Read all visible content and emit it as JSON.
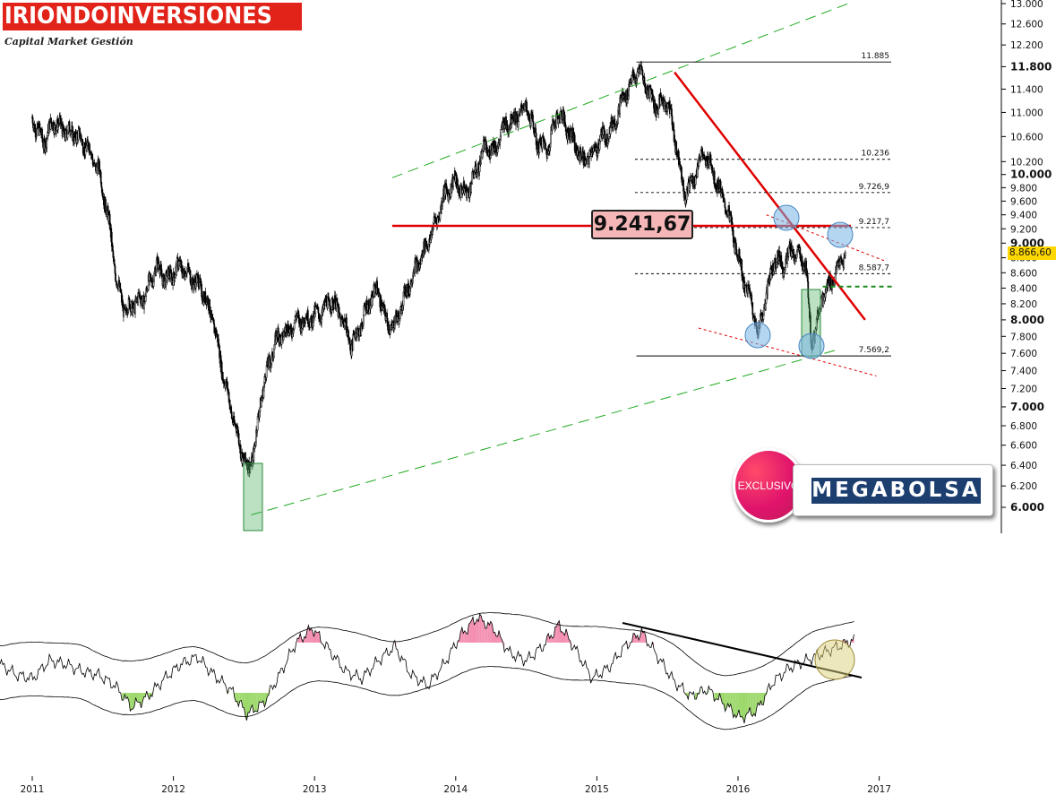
{
  "brand": {
    "name": "IRIONDOINVERSIONES",
    "tagline": "Capital Market Gestión",
    "badge_exclusive": "EXCLUSIVO",
    "badge_megabolsa": "MEGABOLSA",
    "brand_color": "#e2231a",
    "megabolsa_color": "#1c3f70"
  },
  "price_callout": "9.241,67",
  "last_price": "8.866,60",
  "chart_data": {
    "type": "candlestick",
    "title": "",
    "x_ticks": [
      "2011",
      "2012",
      "2013",
      "2014",
      "2015",
      "2016",
      "2017"
    ],
    "y_ticks": [
      {
        "label": "13.000",
        "value": 13000,
        "bold": false
      },
      {
        "label": "12.600",
        "value": 12600,
        "bold": false
      },
      {
        "label": "12.200",
        "value": 12200,
        "bold": false
      },
      {
        "label": "11.800",
        "value": 11800,
        "bold": true
      },
      {
        "label": "11.400",
        "value": 11400,
        "bold": false
      },
      {
        "label": "11.000",
        "value": 11000,
        "bold": false
      },
      {
        "label": "10.600",
        "value": 10600,
        "bold": false
      },
      {
        "label": "10.200",
        "value": 10200,
        "bold": false
      },
      {
        "label": "10.000",
        "value": 10000,
        "bold": true
      },
      {
        "label": "9.800",
        "value": 9800,
        "bold": false
      },
      {
        "label": "9.600",
        "value": 9600,
        "bold": false
      },
      {
        "label": "9.400",
        "value": 9400,
        "bold": false
      },
      {
        "label": "9.200",
        "value": 9200,
        "bold": false
      },
      {
        "label": "9.000",
        "value": 9000,
        "bold": true
      },
      {
        "label": "8.800",
        "value": 8800,
        "bold": false
      },
      {
        "label": "8.600",
        "value": 8600,
        "bold": false
      },
      {
        "label": "8.400",
        "value": 8400,
        "bold": false
      },
      {
        "label": "8.200",
        "value": 8200,
        "bold": false
      },
      {
        "label": "8.000",
        "value": 8000,
        "bold": true
      },
      {
        "label": "7.800",
        "value": 7800,
        "bold": false
      },
      {
        "label": "7.600",
        "value": 7600,
        "bold": false
      },
      {
        "label": "7.400",
        "value": 7400,
        "bold": false
      },
      {
        "label": "7.200",
        "value": 7200,
        "bold": false
      },
      {
        "label": "7.000",
        "value": 7000,
        "bold": true
      },
      {
        "label": "6.800",
        "value": 6800,
        "bold": false
      },
      {
        "label": "6.600",
        "value": 6600,
        "bold": false
      },
      {
        "label": "6.400",
        "value": 6400,
        "bold": false
      },
      {
        "label": "6.200",
        "value": 6200,
        "bold": false
      },
      {
        "label": "6.000",
        "value": 6000,
        "bold": true
      }
    ],
    "y_scale": "log",
    "fib_levels": [
      {
        "label": "11.885",
        "value": 11885
      },
      {
        "label": "10.236",
        "value": 10236
      },
      {
        "label": "9.726,9",
        "value": 9726.9
      },
      {
        "label": "9.217,7",
        "value": 9217.7
      },
      {
        "label": "8.587,7",
        "value": 8587.7
      },
      {
        "label": "7.569,2",
        "value": 7569.2
      }
    ],
    "price_series_close": [
      [
        2011.0,
        10900
      ],
      [
        2011.08,
        10500
      ],
      [
        2011.15,
        10850
      ],
      [
        2011.22,
        10700
      ],
      [
        2011.3,
        10650
      ],
      [
        2011.4,
        10400
      ],
      [
        2011.48,
        10000
      ],
      [
        2011.55,
        9200
      ],
      [
        2011.6,
        8450
      ],
      [
        2011.66,
        8100
      ],
      [
        2011.72,
        8200
      ],
      [
        2011.8,
        8300
      ],
      [
        2011.88,
        8700
      ],
      [
        2011.95,
        8500
      ],
      [
        2012.05,
        8700
      ],
      [
        2012.12,
        8550
      ],
      [
        2012.2,
        8400
      ],
      [
        2012.28,
        8000
      ],
      [
        2012.36,
        7300
      ],
      [
        2012.42,
        6900
      ],
      [
        2012.48,
        6550
      ],
      [
        2012.53,
        6350
      ],
      [
        2012.58,
        6600
      ],
      [
        2012.62,
        7100
      ],
      [
        2012.68,
        7500
      ],
      [
        2012.74,
        7800
      ],
      [
        2012.8,
        7850
      ],
      [
        2012.88,
        8000
      ],
      [
        2012.95,
        8000
      ],
      [
        2013.05,
        8100
      ],
      [
        2013.12,
        8250
      ],
      [
        2013.2,
        8000
      ],
      [
        2013.26,
        7700
      ],
      [
        2013.32,
        7900
      ],
      [
        2013.38,
        8200
      ],
      [
        2013.45,
        8400
      ],
      [
        2013.5,
        8000
      ],
      [
        2013.56,
        7900
      ],
      [
        2013.62,
        8200
      ],
      [
        2013.7,
        8600
      ],
      [
        2013.78,
        8900
      ],
      [
        2013.86,
        9300
      ],
      [
        2013.92,
        9700
      ],
      [
        2014.0,
        9900
      ],
      [
        2014.06,
        9700
      ],
      [
        2014.12,
        9900
      ],
      [
        2014.2,
        10400
      ],
      [
        2014.28,
        10400
      ],
      [
        2014.35,
        10800
      ],
      [
        2014.42,
        10900
      ],
      [
        2014.5,
        11100
      ],
      [
        2014.58,
        10500
      ],
      [
        2014.65,
        10400
      ],
      [
        2014.72,
        11000
      ],
      [
        2014.78,
        10800
      ],
      [
        2014.84,
        10500
      ],
      [
        2014.9,
        10200
      ],
      [
        2014.96,
        10300
      ],
      [
        2015.04,
        10600
      ],
      [
        2015.1,
        10700
      ],
      [
        2015.18,
        11200
      ],
      [
        2015.24,
        11500
      ],
      [
        2015.3,
        11750
      ],
      [
        2015.36,
        11400
      ],
      [
        2015.42,
        11100
      ],
      [
        2015.5,
        11200
      ],
      [
        2015.56,
        10500
      ],
      [
        2015.62,
        9700
      ],
      [
        2015.68,
        9900
      ],
      [
        2015.74,
        10300
      ],
      [
        2015.8,
        10200
      ],
      [
        2015.86,
        9800
      ],
      [
        2015.92,
        9500
      ],
      [
        2015.98,
        9000
      ],
      [
        2016.04,
        8500
      ],
      [
        2016.1,
        8200
      ],
      [
        2016.14,
        7820
      ],
      [
        2016.2,
        8300
      ],
      [
        2016.26,
        8800
      ],
      [
        2016.32,
        8700
      ],
      [
        2016.38,
        8900
      ],
      [
        2016.44,
        8800
      ],
      [
        2016.48,
        8700
      ],
      [
        2016.52,
        7700
      ],
      [
        2016.56,
        8000
      ],
      [
        2016.6,
        8300
      ],
      [
        2016.64,
        8400
      ],
      [
        2016.68,
        8550
      ],
      [
        2016.72,
        8700
      ],
      [
        2016.76,
        8866.6
      ]
    ],
    "trendlines": [
      {
        "kind": "upper-channel",
        "color": "#22aa22",
        "dash": true,
        "from": [
          2013.55,
          9950
        ],
        "to": [
          2016.78,
          13000
        ]
      },
      {
        "kind": "lower-channel",
        "color": "#22aa22",
        "dash": true,
        "from": [
          2012.55,
          5930
        ],
        "to": [
          2016.72,
          7650
        ]
      },
      {
        "kind": "resistance",
        "color": "#e00000",
        "dash": false,
        "from": [
          2013.55,
          9241.67
        ],
        "to": [
          2016.8,
          9241.67
        ]
      },
      {
        "kind": "downtrend",
        "color": "#e00000",
        "dash": false,
        "from": [
          2015.55,
          11700
        ],
        "to": [
          2016.9,
          8000
        ]
      },
      {
        "kind": "upper-red-dotted",
        "color": "#e00000",
        "dash": true,
        "from": [
          2016.2,
          9400
        ],
        "to": [
          2017.05,
          8750
        ]
      },
      {
        "kind": "lower-red-dotted",
        "color": "#e00000",
        "dash": true,
        "from": [
          2015.72,
          7900
        ],
        "to": [
          2016.98,
          7340
        ]
      },
      {
        "kind": "support-green",
        "color": "#1a8a1a",
        "dash": true,
        "from": [
          2016.6,
          8420
        ],
        "to": [
          2017.1,
          8420
        ]
      }
    ],
    "oscillator": {
      "type": "area",
      "values": [
        0.1,
        -0.2,
        -0.3,
        0.2,
        0.1,
        -0.1,
        -0.2,
        -0.5,
        -1.1,
        -0.8,
        -0.3,
        0.1,
        0.3,
        -0.2,
        -0.6,
        -1.3,
        -1.0,
        -0.2,
        0.7,
        1.1,
        0.5,
        -0.1,
        -0.3,
        0.2,
        0.6,
        -0.2,
        -0.5,
        0.1,
        0.9,
        1.4,
        1.1,
        0.4,
        0.2,
        0.6,
        1.2,
        0.5,
        -0.3,
        0.0,
        0.6,
        1.0,
        0.3,
        -0.4,
        -0.8,
        -0.6,
        -1.0,
        -1.4,
        -1.2,
        -0.4,
        0.0,
        0.2,
        0.4,
        0.6,
        0.8
      ],
      "downtrend_line": true
    }
  }
}
